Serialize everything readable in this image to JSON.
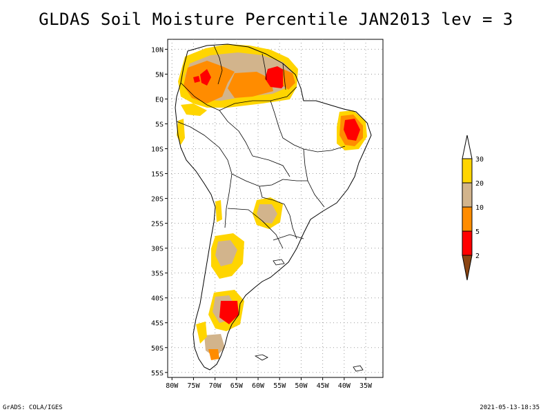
{
  "title": "GLDAS Soil Moisture Percentile JAN2013 lev = 3",
  "map": {
    "lon_range": [
      -81,
      -31
    ],
    "lat_range": [
      -56,
      12
    ],
    "lat_ticks": [
      {
        "value": 10,
        "label": "10N"
      },
      {
        "value": 5,
        "label": "5N"
      },
      {
        "value": 0,
        "label": "EQ"
      },
      {
        "value": -5,
        "label": "5S"
      },
      {
        "value": -10,
        "label": "10S"
      },
      {
        "value": -15,
        "label": "15S"
      },
      {
        "value": -20,
        "label": "20S"
      },
      {
        "value": -25,
        "label": "25S"
      },
      {
        "value": -30,
        "label": "30S"
      },
      {
        "value": -35,
        "label": "35S"
      },
      {
        "value": -40,
        "label": "40S"
      },
      {
        "value": -45,
        "label": "45S"
      },
      {
        "value": -50,
        "label": "50S"
      },
      {
        "value": -55,
        "label": "55S"
      }
    ],
    "lon_ticks": [
      {
        "value": -80,
        "label": "80W"
      },
      {
        "value": -75,
        "label": "75W"
      },
      {
        "value": -70,
        "label": "70W"
      },
      {
        "value": -65,
        "label": "65W"
      },
      {
        "value": -60,
        "label": "60W"
      },
      {
        "value": -55,
        "label": "55W"
      },
      {
        "value": -50,
        "label": "50W"
      },
      {
        "value": -45,
        "label": "45W"
      },
      {
        "value": -40,
        "label": "40W"
      },
      {
        "value": -35,
        "label": "35W"
      }
    ]
  },
  "colorbar": {
    "labels": [
      "30",
      "20",
      "10",
      "5",
      "2"
    ],
    "colors": {
      "gt30": "#ffffff",
      "20_30": "#ffd500",
      "10_20": "#d2b48c",
      "5_10": "#ff8c00",
      "2_5": "#ff0000",
      "lt2": "#8b4513"
    }
  },
  "footer": {
    "left": "GrADS: COLA/IGES",
    "right": "2021-05-13-18:35"
  }
}
